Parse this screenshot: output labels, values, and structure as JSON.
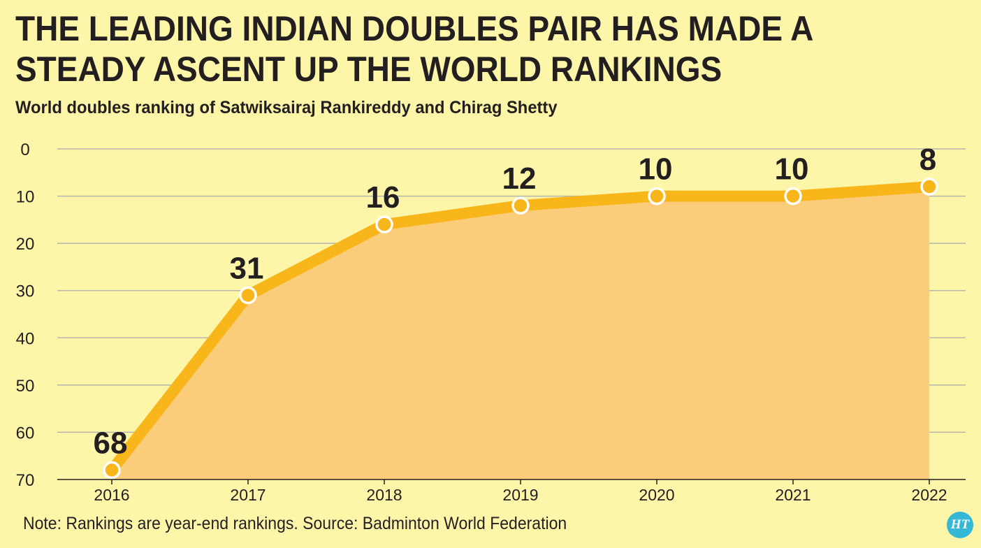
{
  "title": "THE LEADING INDIAN DOUBLES PAIR HAS MADE A STEADY ASCENT UP THE WORLD RANKINGS",
  "subtitle": "World doubles ranking of Satwiksairaj Rankireddy and Chirag Shetty",
  "note": "Note: Rankings are year-end rankings. Source: Badminton World Federation",
  "logo_text": "HT",
  "colors": {
    "background": "#fdf6a8",
    "line": "#f9b61b",
    "area_fill": "#fbcc7a",
    "grid": "#b5b5ad",
    "marker_fill": "#f9b61b",
    "marker_stroke": "#ffffff",
    "text": "#231f20",
    "logo": "#35b8d6"
  },
  "chart_data": {
    "type": "area",
    "title": "THE LEADING INDIAN DOUBLES PAIR HAS MADE A STEADY ASCENT UP THE WORLD RANKINGS",
    "subtitle": "World doubles ranking of Satwiksairaj Rankireddy and Chirag Shetty",
    "xlabel": "",
    "ylabel": "",
    "categories": [
      "2016",
      "2017",
      "2018",
      "2019",
      "2020",
      "2021",
      "2022"
    ],
    "series": [
      {
        "values": [
          68,
          31,
          16,
          12,
          10,
          10,
          8
        ]
      }
    ],
    "data_labels": [
      "68",
      "31",
      "16",
      "12",
      "10",
      "10",
      "8"
    ],
    "ylim": [
      0,
      70
    ],
    "y_inverted": true,
    "yticks": [
      0,
      10,
      20,
      30,
      40,
      50,
      60,
      70
    ],
    "ytick_labels": [
      "0",
      "10",
      "20",
      "30",
      "40",
      "50",
      "60",
      "70"
    ],
    "grid": true,
    "legend": "none"
  }
}
